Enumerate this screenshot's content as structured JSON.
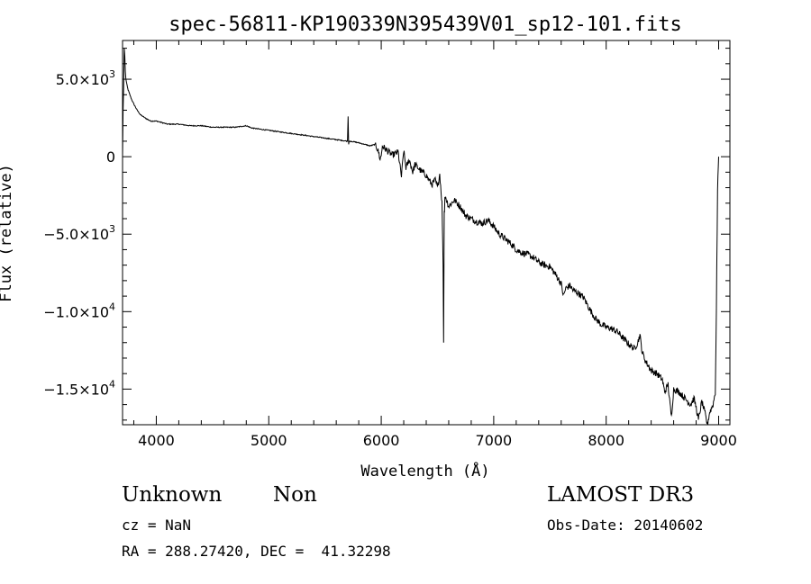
{
  "chart_data": {
    "type": "line",
    "title": "spec-56811-KP190339N395439V01_sp12-101.fits",
    "xlabel": "Wavelength (Å)",
    "ylabel": "Flux (relative)",
    "xlim": [
      3700,
      9100
    ],
    "ylim": [
      -17300,
      7500
    ],
    "x_ticks": [
      4000,
      5000,
      6000,
      7000,
      8000,
      9000
    ],
    "x_tick_labels": [
      "4000",
      "5000",
      "6000",
      "7000",
      "8000",
      "9000"
    ],
    "y_ticks": [
      5000,
      0,
      -5000,
      -10000,
      -15000
    ],
    "y_tick_labels": [
      {
        "mantissa": "5.0×10",
        "exp": "3"
      },
      {
        "mantissa": "0",
        "exp": ""
      },
      {
        "mantissa": "−5.0×10",
        "exp": "3"
      },
      {
        "mantissa": "−1.0×10",
        "exp": "4"
      },
      {
        "mantissa": "−1.5×10",
        "exp": "4"
      }
    ],
    "grid": false,
    "line_color": "#000000",
    "series": [
      {
        "x": [
          3700,
          3705,
          3710,
          3715,
          3720,
          3725,
          3730,
          3740,
          3750,
          3760,
          3780,
          3800,
          3830,
          3860,
          3900,
          3950,
          4000,
          4050,
          4100,
          4200,
          4300,
          4400,
          4500,
          4600,
          4700,
          4750,
          4800,
          4850,
          4900,
          5000,
          5100,
          5200,
          5300,
          5400,
          5500,
          5600,
          5700,
          5705,
          5710,
          5715,
          5720,
          5725,
          5800,
          5900,
          5950,
          5980,
          5990,
          5995,
          6000,
          6010,
          6050,
          6100,
          6150,
          6180,
          6200,
          6220,
          6250,
          6280,
          6300,
          6350,
          6400,
          6450,
          6480,
          6500,
          6520,
          6540,
          6550,
          6555,
          6560,
          6563,
          6566,
          6570,
          6580,
          6600,
          6650,
          6700,
          6750,
          6800,
          6850,
          6900,
          6950,
          7000,
          7050,
          7100,
          7150,
          7200,
          7250,
          7300,
          7350,
          7400,
          7450,
          7500,
          7550,
          7600,
          7620,
          7640,
          7680,
          7700,
          7750,
          7800,
          7850,
          7900,
          7950,
          8000,
          8050,
          8100,
          8150,
          8200,
          8250,
          8280,
          8300,
          8320,
          8350,
          8400,
          8450,
          8500,
          8520,
          8550,
          8560,
          8580,
          8600,
          8650,
          8700,
          8750,
          8780,
          8800,
          8820,
          8850,
          8880,
          8900,
          8920,
          8950,
          8970,
          8980,
          8990,
          9000
        ],
        "y": [
          0,
          3000,
          4500,
          7000,
          6500,
          5500,
          5000,
          4600,
          4300,
          4100,
          3700,
          3400,
          3000,
          2700,
          2500,
          2300,
          2300,
          2200,
          2100,
          2100,
          2000,
          2000,
          1900,
          1900,
          1900,
          1950,
          2000,
          1850,
          1800,
          1700,
          1600,
          1500,
          1400,
          1300,
          1200,
          1100,
          1000,
          2600,
          800,
          1000,
          1000,
          1000,
          900,
          700,
          800,
          200,
          -200,
          0,
          0,
          700,
          400,
          100,
          300,
          -1300,
          400,
          -700,
          -200,
          -1000,
          -500,
          -900,
          -1200,
          -1800,
          -1500,
          -2000,
          -1100,
          -3000,
          -7000,
          -12000,
          -3500,
          -3600,
          -2600,
          -2500,
          -2800,
          -3200,
          -2800,
          -3200,
          -3800,
          -4000,
          -4200,
          -4300,
          -4100,
          -4500,
          -5000,
          -5300,
          -5600,
          -6000,
          -6200,
          -6300,
          -6500,
          -6800,
          -7000,
          -7100,
          -7600,
          -8200,
          -9000,
          -8500,
          -8300,
          -8600,
          -8800,
          -9100,
          -9800,
          -10400,
          -10800,
          -11000,
          -11100,
          -11300,
          -11700,
          -12100,
          -12400,
          -12000,
          -11500,
          -12600,
          -13200,
          -13800,
          -14000,
          -14400,
          -15200,
          -14700,
          -15500,
          -16800,
          -15000,
          -15200,
          -15600,
          -16000,
          -15600,
          -16200,
          -17000,
          -15800,
          -16600,
          -17300,
          -16500,
          -16000,
          -15200,
          -10000,
          -2000,
          0
        ]
      }
    ]
  },
  "info": {
    "object_type": "Unknown",
    "object_subtype": "Non",
    "survey": "LAMOST DR3",
    "cz": "cz = NaN",
    "obs_date": "Obs-Date: 20140602",
    "coords": "RA = 288.27420, DEC =  41.32298"
  }
}
